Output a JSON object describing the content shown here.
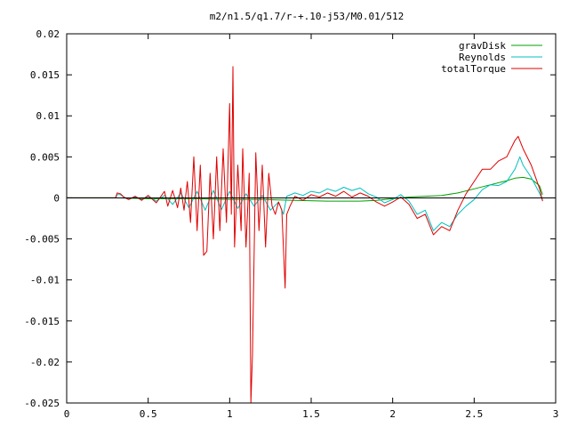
{
  "chart_data": {
    "type": "line",
    "title": "m2/n1.5/q1.7/r-+.10-j53/M0.01/512",
    "xlabel": "",
    "ylabel": "",
    "xlim": [
      0,
      3
    ],
    "ylim": [
      -0.025,
      0.02
    ],
    "xticks": [
      0,
      0.5,
      1,
      1.5,
      2,
      2.5,
      3
    ],
    "xtick_labels": [
      "0",
      "0.5",
      "1",
      "1.5",
      "2",
      "2.5",
      "3"
    ],
    "yticks": [
      -0.025,
      -0.02,
      -0.015,
      -0.01,
      -0.005,
      0,
      0.005,
      0.01,
      0.015,
      0.02
    ],
    "ytick_labels": [
      "-0.025",
      "-0.02",
      "-0.015",
      "-0.01",
      "-0.005",
      "0",
      "0.005",
      "0.01",
      "0.015",
      "0.02"
    ],
    "grid": false,
    "legend": "top-right",
    "series": [
      {
        "name": "gravDisk",
        "color": "#00a000",
        "points": [
          [
            0,
            0
          ],
          [
            0.3,
            0
          ],
          [
            0.5,
            -0.0001
          ],
          [
            0.8,
            -0.0001
          ],
          [
            1.0,
            -0.0002
          ],
          [
            1.2,
            -0.0002
          ],
          [
            1.4,
            -0.0003
          ],
          [
            1.6,
            -0.0004
          ],
          [
            1.8,
            -0.0004
          ],
          [
            1.9,
            -0.0003
          ],
          [
            2.0,
            -0.0001
          ],
          [
            2.1,
            0.0001
          ],
          [
            2.2,
            0.0002
          ],
          [
            2.3,
            0.0003
          ],
          [
            2.4,
            0.0006
          ],
          [
            2.5,
            0.0011
          ],
          [
            2.6,
            0.0016
          ],
          [
            2.7,
            0.0021
          ],
          [
            2.75,
            0.0024
          ],
          [
            2.8,
            0.0025
          ],
          [
            2.85,
            0.0023
          ],
          [
            2.9,
            0.0015
          ],
          [
            2.92,
            0.0004
          ]
        ]
      },
      {
        "name": "Reynolds",
        "color": "#00c0c0",
        "points": [
          [
            0,
            0
          ],
          [
            0.3,
            0
          ],
          [
            0.31,
            0.0004
          ],
          [
            0.33,
            0.0004
          ],
          [
            0.35,
            0.0001
          ],
          [
            0.38,
            -0.0002
          ],
          [
            0.42,
            0.0001
          ],
          [
            0.46,
            -0.0002
          ],
          [
            0.5,
            0.0002
          ],
          [
            0.55,
            -0.0004
          ],
          [
            0.6,
            0.0003
          ],
          [
            0.65,
            -0.0008
          ],
          [
            0.7,
            0.0006
          ],
          [
            0.75,
            -0.0012
          ],
          [
            0.8,
            0.0008
          ],
          [
            0.85,
            -0.0015
          ],
          [
            0.9,
            0.0009
          ],
          [
            0.95,
            -0.0014
          ],
          [
            1.0,
            0.0008
          ],
          [
            1.05,
            -0.0013
          ],
          [
            1.1,
            0.0005
          ],
          [
            1.15,
            -0.001
          ],
          [
            1.2,
            0.0003
          ],
          [
            1.25,
            -0.0015
          ],
          [
            1.3,
            -0.0005
          ],
          [
            1.33,
            -0.002
          ],
          [
            1.35,
            0.0002
          ],
          [
            1.4,
            0.0006
          ],
          [
            1.45,
            0.0003
          ],
          [
            1.5,
            0.0008
          ],
          [
            1.55,
            0.0006
          ],
          [
            1.6,
            0.0011
          ],
          [
            1.65,
            0.0008
          ],
          [
            1.7,
            0.0013
          ],
          [
            1.75,
            0.0009
          ],
          [
            1.8,
            0.0012
          ],
          [
            1.85,
            0.0005
          ],
          [
            1.9,
            0.0001
          ],
          [
            1.95,
            -0.0006
          ],
          [
            2.0,
            -0.0002
          ],
          [
            2.05,
            0.0004
          ],
          [
            2.1,
            -0.0004
          ],
          [
            2.15,
            -0.002
          ],
          [
            2.2,
            -0.0015
          ],
          [
            2.25,
            -0.004
          ],
          [
            2.3,
            -0.003
          ],
          [
            2.35,
            -0.0035
          ],
          [
            2.4,
            -0.002
          ],
          [
            2.45,
            -0.001
          ],
          [
            2.5,
            -0.0002
          ],
          [
            2.55,
            0.001
          ],
          [
            2.6,
            0.0016
          ],
          [
            2.65,
            0.0015
          ],
          [
            2.7,
            0.002
          ],
          [
            2.75,
            0.0035
          ],
          [
            2.78,
            0.005
          ],
          [
            2.8,
            0.004
          ],
          [
            2.85,
            0.0025
          ],
          [
            2.9,
            0.0006
          ],
          [
            2.92,
            -0.0003
          ]
        ]
      },
      {
        "name": "totalTorque",
        "color": "#e00000",
        "points": [
          [
            0,
            0
          ],
          [
            0.3,
            0
          ],
          [
            0.31,
            0.0006
          ],
          [
            0.33,
            0.0005
          ],
          [
            0.35,
            0.0001
          ],
          [
            0.38,
            -0.0002
          ],
          [
            0.42,
            0.0002
          ],
          [
            0.46,
            -0.0003
          ],
          [
            0.5,
            0.0003
          ],
          [
            0.55,
            -0.0006
          ],
          [
            0.6,
            0.0008
          ],
          [
            0.62,
            -0.001
          ],
          [
            0.65,
            0.0009
          ],
          [
            0.68,
            -0.0012
          ],
          [
            0.7,
            0.0012
          ],
          [
            0.72,
            -0.0015
          ],
          [
            0.74,
            0.002
          ],
          [
            0.76,
            -0.003
          ],
          [
            0.78,
            0.005
          ],
          [
            0.8,
            -0.004
          ],
          [
            0.82,
            0.004
          ],
          [
            0.84,
            -0.007
          ],
          [
            0.86,
            -0.0065
          ],
          [
            0.88,
            0.003
          ],
          [
            0.9,
            -0.005
          ],
          [
            0.92,
            0.005
          ],
          [
            0.94,
            -0.004
          ],
          [
            0.96,
            0.006
          ],
          [
            0.98,
            -0.003
          ],
          [
            1.0,
            0.0115
          ],
          [
            1.01,
            -0.002
          ],
          [
            1.02,
            0.016
          ],
          [
            1.03,
            -0.006
          ],
          [
            1.05,
            0.004
          ],
          [
            1.07,
            -0.004
          ],
          [
            1.08,
            0.006
          ],
          [
            1.1,
            -0.006
          ],
          [
            1.12,
            0.003
          ],
          [
            1.13,
            -0.025
          ],
          [
            1.14,
            -0.019
          ],
          [
            1.16,
            0.0055
          ],
          [
            1.18,
            -0.004
          ],
          [
            1.2,
            0.004
          ],
          [
            1.22,
            -0.006
          ],
          [
            1.24,
            0.003
          ],
          [
            1.26,
            -0.001
          ],
          [
            1.28,
            -0.002
          ],
          [
            1.3,
            -0.0005
          ],
          [
            1.32,
            -0.0015
          ],
          [
            1.34,
            -0.011
          ],
          [
            1.35,
            -0.002
          ],
          [
            1.37,
            -0.001
          ],
          [
            1.4,
            0.0002
          ],
          [
            1.45,
            -0.0003
          ],
          [
            1.5,
            0.0004
          ],
          [
            1.55,
            0.0001
          ],
          [
            1.6,
            0.0006
          ],
          [
            1.65,
            0.0002
          ],
          [
            1.7,
            0.0008
          ],
          [
            1.75,
            0.0001
          ],
          [
            1.8,
            0.0006
          ],
          [
            1.85,
            0.0002
          ],
          [
            1.9,
            -0.0005
          ],
          [
            1.95,
            -0.001
          ],
          [
            2.0,
            -0.0005
          ],
          [
            2.05,
            0.0001
          ],
          [
            2.1,
            -0.0008
          ],
          [
            2.15,
            -0.0025
          ],
          [
            2.2,
            -0.002
          ],
          [
            2.25,
            -0.0045
          ],
          [
            2.3,
            -0.0035
          ],
          [
            2.35,
            -0.004
          ],
          [
            2.4,
            -0.0015
          ],
          [
            2.45,
            0.0005
          ],
          [
            2.5,
            0.002
          ],
          [
            2.55,
            0.0035
          ],
          [
            2.6,
            0.0035
          ],
          [
            2.65,
            0.0045
          ],
          [
            2.7,
            0.005
          ],
          [
            2.75,
            0.007
          ],
          [
            2.77,
            0.0075
          ],
          [
            2.8,
            0.006
          ],
          [
            2.85,
            0.004
          ],
          [
            2.9,
            0.0012
          ],
          [
            2.92,
            -0.0004
          ]
        ]
      }
    ]
  }
}
